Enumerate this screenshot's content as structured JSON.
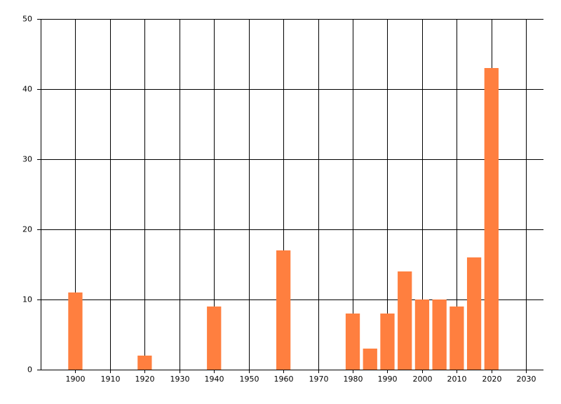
{
  "chart_data": {
    "type": "bar",
    "x": [
      1900,
      1920,
      1940,
      1960,
      1980,
      1985,
      1990,
      1995,
      2000,
      2005,
      2010,
      2015,
      2020
    ],
    "values": [
      11,
      2,
      9,
      17,
      8,
      3,
      8,
      14,
      10,
      10,
      9,
      16,
      43
    ],
    "color": "#ff7f3f",
    "xlim": [
      1890,
      2035
    ],
    "xticks": [
      1900,
      1910,
      1920,
      1930,
      1940,
      1950,
      1960,
      1970,
      1980,
      1990,
      2000,
      2010,
      2020,
      2030
    ],
    "ylim": [
      0,
      50
    ],
    "yticks": [
      0,
      10,
      20,
      30,
      40,
      50
    ],
    "grid": true
  }
}
